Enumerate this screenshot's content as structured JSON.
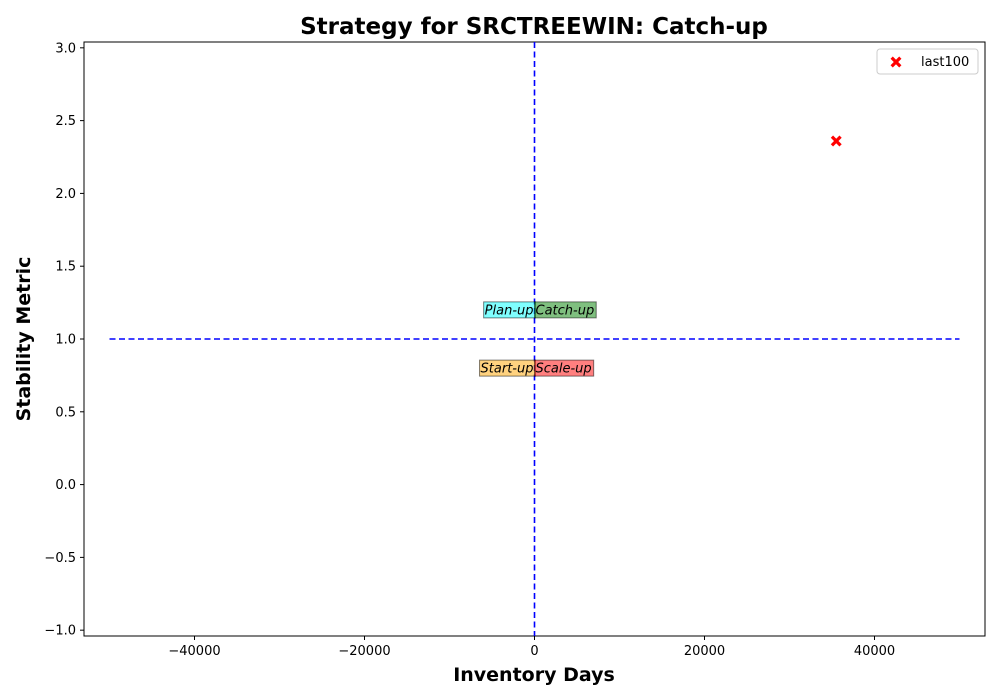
{
  "chart_data": {
    "type": "scatter",
    "title": "Strategy for SRCTREEWIN: Catch-up",
    "xlabel": "Inventory Days",
    "ylabel": "Stability Metric",
    "xlim": [
      -53000,
      53000
    ],
    "ylim": [
      -1.04,
      3.04
    ],
    "x_ticks": [
      -40000,
      -20000,
      0,
      20000,
      40000
    ],
    "x_tick_labels": [
      "−40000",
      "−20000",
      "0",
      "20000",
      "40000"
    ],
    "y_ticks": [
      -1.0,
      -0.5,
      0.0,
      0.5,
      1.0,
      1.5,
      2.0,
      2.5,
      3.0
    ],
    "y_tick_labels": [
      "−1.0",
      "−0.5",
      "0.0",
      "0.5",
      "1.0",
      "1.5",
      "2.0",
      "2.5",
      "3.0"
    ],
    "grid": false,
    "legend_position": "top-right",
    "series": [
      {
        "name": "last100",
        "marker": "x",
        "color": "#ff0000",
        "points": [
          {
            "x": 35500,
            "y": 2.36
          }
        ]
      }
    ],
    "reference_lines": [
      {
        "orientation": "horizontal",
        "y": 1.0,
        "x_range": [
          -50000,
          50000
        ],
        "style": "dashed",
        "color": "#0000ff"
      },
      {
        "orientation": "vertical",
        "x": 0,
        "style": "dashed",
        "color": "#0000ff"
      }
    ],
    "quadrant_labels": [
      {
        "text": "Plan-up",
        "x": 0,
        "y": 1.2,
        "align": "right",
        "color": "#00ffff"
      },
      {
        "text": "Catch-up",
        "x": 0,
        "y": 1.2,
        "align": "left",
        "color": "#008000"
      },
      {
        "text": "Start-up",
        "x": 0,
        "y": 0.8,
        "align": "right",
        "color": "#ffa500"
      },
      {
        "text": "Scale-up",
        "x": 0,
        "y": 0.8,
        "align": "left",
        "color": "#ff0000"
      }
    ]
  }
}
